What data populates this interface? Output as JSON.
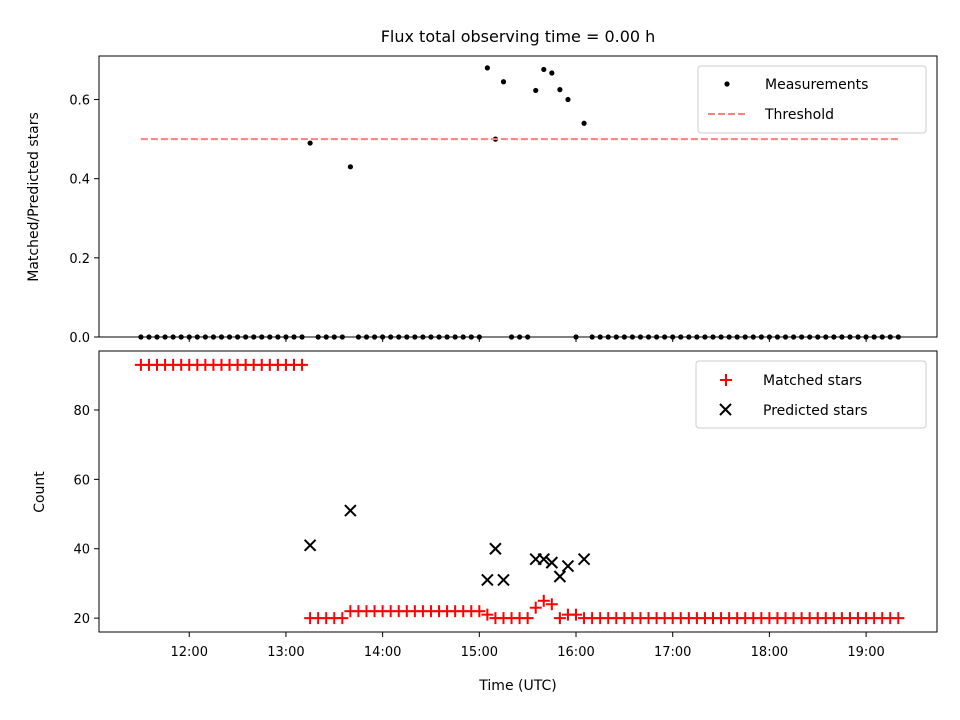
{
  "figure": {
    "title": "Flux total observing time = 0.00 h",
    "xlabel": "Time (UTC)"
  },
  "chart_data": [
    {
      "type": "scatter",
      "ylabel": "Matched/Predicted stars",
      "ylim": [
        0,
        0.71
      ],
      "yticks": [
        0.0,
        0.2,
        0.4,
        0.6
      ],
      "ytick_labels": [
        "0.0",
        "0.2",
        "0.4",
        "0.6"
      ],
      "legend_position": "top-right",
      "series": [
        {
          "name": "Measurements",
          "kind": "scatter",
          "color": "#000000",
          "points": [
            [
              "11:30",
              0
            ],
            [
              "11:35",
              0
            ],
            [
              "11:40",
              0
            ],
            [
              "11:45",
              0
            ],
            [
              "11:50",
              0
            ],
            [
              "11:55",
              0
            ],
            [
              "12:00",
              0
            ],
            [
              "12:05",
              0
            ],
            [
              "12:10",
              0
            ],
            [
              "12:15",
              0
            ],
            [
              "12:20",
              0
            ],
            [
              "12:25",
              0
            ],
            [
              "12:30",
              0
            ],
            [
              "12:35",
              0
            ],
            [
              "12:40",
              0
            ],
            [
              "12:45",
              0
            ],
            [
              "12:50",
              0
            ],
            [
              "12:55",
              0
            ],
            [
              "13:00",
              0
            ],
            [
              "13:05",
              0
            ],
            [
              "13:10",
              0
            ],
            [
              "13:15",
              0.49
            ],
            [
              "13:20",
              0
            ],
            [
              "13:25",
              0
            ],
            [
              "13:30",
              0
            ],
            [
              "13:35",
              0
            ],
            [
              "13:40",
              0.43
            ],
            [
              "13:45",
              0
            ],
            [
              "13:50",
              0
            ],
            [
              "13:55",
              0
            ],
            [
              "14:00",
              0
            ],
            [
              "14:05",
              0
            ],
            [
              "14:10",
              0
            ],
            [
              "14:15",
              0
            ],
            [
              "14:20",
              0
            ],
            [
              "14:25",
              0
            ],
            [
              "14:30",
              0
            ],
            [
              "14:35",
              0
            ],
            [
              "14:40",
              0
            ],
            [
              "14:45",
              0
            ],
            [
              "14:50",
              0
            ],
            [
              "14:55",
              0
            ],
            [
              "15:00",
              0
            ],
            [
              "15:05",
              0.68
            ],
            [
              "15:10",
              0.5
            ],
            [
              "15:15",
              0.645
            ],
            [
              "15:20",
              0
            ],
            [
              "15:25",
              0
            ],
            [
              "15:30",
              0
            ],
            [
              "15:35",
              0.623
            ],
            [
              "15:40",
              0.676
            ],
            [
              "15:45",
              0.667
            ],
            [
              "15:50",
              0.625
            ],
            [
              "15:55",
              0.6
            ],
            [
              "16:00",
              0
            ],
            [
              "16:05",
              0.54
            ],
            [
              "16:10",
              0
            ],
            [
              "16:15",
              0
            ],
            [
              "16:20",
              0
            ],
            [
              "16:25",
              0
            ],
            [
              "16:30",
              0
            ],
            [
              "16:35",
              0
            ],
            [
              "16:40",
              0
            ],
            [
              "16:45",
              0
            ],
            [
              "16:50",
              0
            ],
            [
              "16:55",
              0
            ],
            [
              "17:00",
              0
            ],
            [
              "17:05",
              0
            ],
            [
              "17:10",
              0
            ],
            [
              "17:15",
              0
            ],
            [
              "17:20",
              0
            ],
            [
              "17:25",
              0
            ],
            [
              "17:30",
              0
            ],
            [
              "17:35",
              0
            ],
            [
              "17:40",
              0
            ],
            [
              "17:45",
              0
            ],
            [
              "17:50",
              0
            ],
            [
              "17:55",
              0
            ],
            [
              "18:00",
              0
            ],
            [
              "18:05",
              0
            ],
            [
              "18:10",
              0
            ],
            [
              "18:15",
              0
            ],
            [
              "18:20",
              0
            ],
            [
              "18:25",
              0
            ],
            [
              "18:30",
              0
            ],
            [
              "18:35",
              0
            ],
            [
              "18:40",
              0
            ],
            [
              "18:45",
              0
            ],
            [
              "18:50",
              0
            ],
            [
              "18:55",
              0
            ],
            [
              "19:00",
              0
            ],
            [
              "19:05",
              0
            ],
            [
              "19:10",
              0
            ],
            [
              "19:15",
              0
            ],
            [
              "19:20",
              0
            ]
          ]
        },
        {
          "name": "Threshold",
          "kind": "dashed-line",
          "color": "#ff7f7f",
          "points": [
            [
              "11:30",
              0.5
            ],
            [
              "19:20",
              0.5
            ]
          ]
        }
      ]
    },
    {
      "type": "scatter",
      "ylabel": "Count",
      "ylim": [
        16,
        97
      ],
      "yticks": [
        20,
        40,
        60,
        80
      ],
      "ytick_labels": [
        "20",
        "40",
        "60",
        "80"
      ],
      "legend_position": "top-right",
      "series": [
        {
          "name": "Matched stars",
          "kind": "plus",
          "color": "#ff0000",
          "points": [
            [
              "11:30",
              93
            ],
            [
              "11:35",
              93
            ],
            [
              "11:40",
              93
            ],
            [
              "11:45",
              93
            ],
            [
              "11:50",
              93
            ],
            [
              "11:55",
              93
            ],
            [
              "12:00",
              93
            ],
            [
              "12:05",
              93
            ],
            [
              "12:10",
              93
            ],
            [
              "12:15",
              93
            ],
            [
              "12:20",
              93
            ],
            [
              "12:25",
              93
            ],
            [
              "12:30",
              93
            ],
            [
              "12:35",
              93
            ],
            [
              "12:40",
              93
            ],
            [
              "12:45",
              93
            ],
            [
              "12:50",
              93
            ],
            [
              "12:55",
              93
            ],
            [
              "13:00",
              93
            ],
            [
              "13:05",
              93
            ],
            [
              "13:10",
              93
            ],
            [
              "13:15",
              20
            ],
            [
              "13:20",
              20
            ],
            [
              "13:25",
              20
            ],
            [
              "13:30",
              20
            ],
            [
              "13:35",
              20
            ],
            [
              "13:40",
              22
            ],
            [
              "13:45",
              22
            ],
            [
              "13:50",
              22
            ],
            [
              "13:55",
              22
            ],
            [
              "14:00",
              22
            ],
            [
              "14:05",
              22
            ],
            [
              "14:10",
              22
            ],
            [
              "14:15",
              22
            ],
            [
              "14:20",
              22
            ],
            [
              "14:25",
              22
            ],
            [
              "14:30",
              22
            ],
            [
              "14:35",
              22
            ],
            [
              "14:40",
              22
            ],
            [
              "14:45",
              22
            ],
            [
              "14:50",
              22
            ],
            [
              "14:55",
              22
            ],
            [
              "15:00",
              22
            ],
            [
              "15:05",
              21
            ],
            [
              "15:10",
              20
            ],
            [
              "15:15",
              20
            ],
            [
              "15:20",
              20
            ],
            [
              "15:25",
              20
            ],
            [
              "15:30",
              20
            ],
            [
              "15:35",
              23
            ],
            [
              "15:40",
              25
            ],
            [
              "15:45",
              24
            ],
            [
              "15:50",
              20
            ],
            [
              "15:55",
              21
            ],
            [
              "16:00",
              21
            ],
            [
              "16:05",
              20
            ],
            [
              "16:10",
              20
            ],
            [
              "16:15",
              20
            ],
            [
              "16:20",
              20
            ],
            [
              "16:25",
              20
            ],
            [
              "16:30",
              20
            ],
            [
              "16:35",
              20
            ],
            [
              "16:40",
              20
            ],
            [
              "16:45",
              20
            ],
            [
              "16:50",
              20
            ],
            [
              "16:55",
              20
            ],
            [
              "17:00",
              20
            ],
            [
              "17:05",
              20
            ],
            [
              "17:10",
              20
            ],
            [
              "17:15",
              20
            ],
            [
              "17:20",
              20
            ],
            [
              "17:25",
              20
            ],
            [
              "17:30",
              20
            ],
            [
              "17:35",
              20
            ],
            [
              "17:40",
              20
            ],
            [
              "17:45",
              20
            ],
            [
              "17:50",
              20
            ],
            [
              "17:55",
              20
            ],
            [
              "18:00",
              20
            ],
            [
              "18:05",
              20
            ],
            [
              "18:10",
              20
            ],
            [
              "18:15",
              20
            ],
            [
              "18:20",
              20
            ],
            [
              "18:25",
              20
            ],
            [
              "18:30",
              20
            ],
            [
              "18:35",
              20
            ],
            [
              "18:40",
              20
            ],
            [
              "18:45",
              20
            ],
            [
              "18:50",
              20
            ],
            [
              "18:55",
              20
            ],
            [
              "19:00",
              20
            ],
            [
              "19:05",
              20
            ],
            [
              "19:10",
              20
            ],
            [
              "19:15",
              20
            ],
            [
              "19:20",
              20
            ]
          ]
        },
        {
          "name": "Predicted stars",
          "kind": "x",
          "color": "#000000",
          "points": [
            [
              "13:15",
              41
            ],
            [
              "13:40",
              51
            ],
            [
              "15:05",
              31
            ],
            [
              "15:10",
              40
            ],
            [
              "15:15",
              31
            ],
            [
              "15:35",
              37
            ],
            [
              "15:40",
              37
            ],
            [
              "15:45",
              36
            ],
            [
              "15:50",
              32
            ],
            [
              "15:55",
              35
            ],
            [
              "16:05",
              37
            ]
          ]
        }
      ]
    }
  ],
  "xaxis": {
    "range": [
      "11:04",
      "19:44"
    ],
    "ticks": [
      "12:00",
      "13:00",
      "14:00",
      "15:00",
      "16:00",
      "17:00",
      "18:00",
      "19:00"
    ]
  }
}
